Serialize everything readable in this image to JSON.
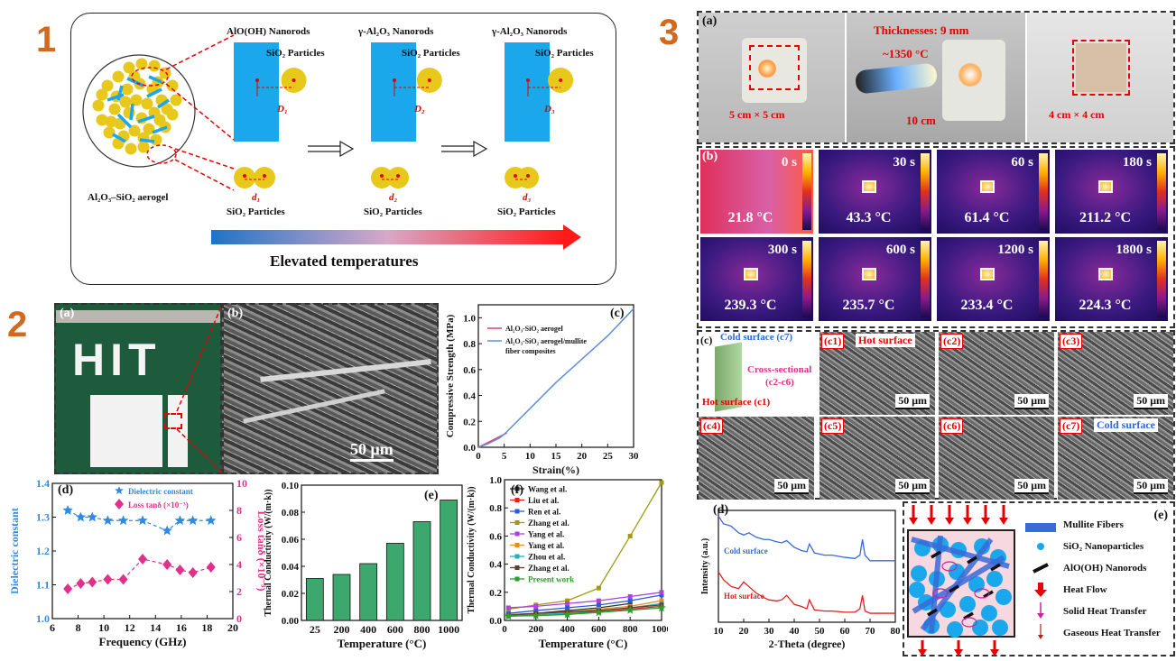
{
  "section_numbers": [
    "1",
    "2",
    "3"
  ],
  "fig1": {
    "aerogel_label": "Al₂O₃–SiO₂ aerogel",
    "stages": [
      {
        "rod_label": "AlO(OH) Nanorods",
        "particle_label": "SiO₂ Particles",
        "D": "D₁",
        "d": "d₁",
        "pair_label": "SiO₂ Particles"
      },
      {
        "rod_label": "γ-Al₂O₃ Nanorods",
        "particle_label": "SiO₂ Particles",
        "D": "D₂",
        "d": "d₂",
        "pair_label": "SiO₂ Particles"
      },
      {
        "rod_label": "γ-Al₂O₃ Nanorods",
        "particle_label": "SiO₂ Particles",
        "D": "D₃",
        "d": "d₃",
        "pair_label": "SiO₂ Particles"
      }
    ],
    "arrow_caption": "Elevated temperatures",
    "colors": {
      "rod": "#1aa7ec",
      "particle": "#e8c81a",
      "arrow_start": "#1e73c8",
      "arrow_end": "#ff1a1a"
    }
  },
  "fig2": {
    "a": {
      "label": "(a)",
      "letters": "HIT"
    },
    "b": {
      "label": "(b)",
      "scale": "50 μm"
    },
    "c": {
      "label": "(c)",
      "legend": [
        "Al₂O₃-SiO₂ aerogel",
        "Al₂O₃-SiO₂ aerogel/mullite",
        "fiber composites"
      ]
    },
    "d": {
      "label": "(d)",
      "legend": [
        "Dielectric constant",
        "Loss tanδ (×10⁻³)"
      ]
    },
    "e": {
      "label": "(e)"
    },
    "f": {
      "label": "(f)"
    }
  },
  "fig3": {
    "a": {
      "label": "(a)",
      "size1": "5 cm × 5 cm",
      "thickness": "Thicknesses: 9 mm",
      "flame_temp": "~1350 °C",
      "distance": "10 cm",
      "size2": "4 cm × 4 cm"
    },
    "b": {
      "label": "(b)",
      "cells": [
        {
          "time": "0 s",
          "temp": "21.8 °C"
        },
        {
          "time": "30 s",
          "temp": "43.3 °C"
        },
        {
          "time": "60 s",
          "temp": "61.4 °C"
        },
        {
          "time": "180 s",
          "temp": "211.2 °C"
        },
        {
          "time": "300 s",
          "temp": "239.3 °C"
        },
        {
          "time": "600 s",
          "temp": "235.7 °C"
        },
        {
          "time": "1200 s",
          "temp": "233.4 °C"
        },
        {
          "time": "1800 s",
          "temp": "224.3 °C"
        }
      ]
    },
    "c": {
      "label": "(c)",
      "cold": "Cold surface (c7)",
      "cross": "Cross-sectional",
      "cross2": "(c2-c6)",
      "hot": "Hot surface (c1)",
      "sem": [
        {
          "label": "(c1)",
          "extra": "Hot surface",
          "scale": "50 μm"
        },
        {
          "label": "(c2)",
          "extra": "",
          "scale": "50 μm"
        },
        {
          "label": "(c3)",
          "extra": "",
          "scale": "50 μm"
        },
        {
          "label": "(c4)",
          "extra": "",
          "scale": "50 μm"
        },
        {
          "label": "(c5)",
          "extra": "",
          "scale": "50 μm"
        },
        {
          "label": "(c6)",
          "extra": "",
          "scale": "50 μm"
        },
        {
          "label": "(c7)",
          "extra": "Cold surface",
          "scale": "50 μm"
        }
      ]
    },
    "d": {
      "label": "(d)"
    },
    "e": {
      "label": "(e)",
      "legend": [
        "Mullite Fibers",
        "SiO₂ Nanoparticles",
        "AlO(OH) Nanorods",
        "Heat Flow",
        "Solid Heat Transfer",
        "Gaseous Heat Transfer"
      ]
    }
  },
  "chart_data": [
    {
      "id": "2c",
      "type": "line",
      "xlabel": "Strain(%)",
      "ylabel": "Compressive Strength (MPa)",
      "xlim": [
        0,
        30
      ],
      "ylim": [
        0,
        1.1
      ],
      "xticks": [
        0,
        5,
        10,
        15,
        20,
        25,
        30
      ],
      "yticks": [
        0.0,
        0.2,
        0.4,
        0.6,
        0.8,
        1.0
      ],
      "series": [
        {
          "name": "Al₂O₃-SiO₂ aerogel",
          "color": "#e0407a",
          "x": [
            0,
            1,
            2,
            3,
            4,
            5,
            5.5
          ],
          "y": [
            0,
            0.02,
            0.04,
            0.06,
            0.08,
            0.1,
            0.11
          ]
        },
        {
          "name": "Al₂O₃-SiO₂ aerogel/mullite fiber composites",
          "color": "#5a8ee0",
          "x": [
            0,
            2,
            4,
            5,
            6,
            10,
            15,
            20,
            25,
            30
          ],
          "y": [
            0,
            0.03,
            0.07,
            0.1,
            0.14,
            0.3,
            0.5,
            0.68,
            0.86,
            1.07
          ]
        }
      ]
    },
    {
      "id": "2d",
      "type": "line",
      "xlabel": "Frequency (GHz)",
      "ylabel": "Dielectric constant",
      "ylabel_right": "Loss tanδ (×10⁻³)",
      "xlim": [
        6,
        20
      ],
      "ylim": [
        1.0,
        1.4
      ],
      "ylim_right": [
        0,
        10
      ],
      "xticks": [
        6,
        8,
        10,
        12,
        14,
        16,
        18,
        20
      ],
      "yticks": [
        1.0,
        1.1,
        1.2,
        1.3,
        1.4
      ],
      "yticks_right": [
        0,
        2,
        4,
        6,
        8,
        10
      ],
      "series": [
        {
          "name": "Dielectric constant",
          "color": "#2e8ae6",
          "marker": "star",
          "x": [
            7.2,
            8.2,
            9.1,
            10.3,
            11.5,
            13.0,
            14.9,
            15.9,
            16.9,
            18.3
          ],
          "y": [
            1.32,
            1.3,
            1.3,
            1.29,
            1.29,
            1.29,
            1.26,
            1.29,
            1.29,
            1.29
          ]
        },
        {
          "name": "Loss tanδ (×10⁻³)",
          "color": "#e0308a",
          "marker": "diamond",
          "axis": "right",
          "x": [
            7.2,
            8.2,
            9.1,
            10.3,
            11.5,
            13.0,
            14.9,
            15.9,
            16.9,
            18.3
          ],
          "y": [
            2.2,
            2.6,
            2.7,
            2.9,
            2.9,
            4.4,
            4.0,
            3.6,
            3.4,
            3.8
          ]
        }
      ]
    },
    {
      "id": "2e",
      "type": "bar",
      "xlabel": "Temperature (°C)",
      "ylabel": "Thermal Conductivity (W/(m·k))",
      "categories": [
        "25",
        "200",
        "400",
        "600",
        "800",
        "1000"
      ],
      "values": [
        0.031,
        0.034,
        0.042,
        0.057,
        0.073,
        0.089
      ],
      "ylim": [
        0,
        0.1
      ],
      "yticks": [
        0.0,
        0.02,
        0.04,
        0.06,
        0.08,
        0.1
      ],
      "color": "#3ca86e"
    },
    {
      "id": "2f",
      "type": "line",
      "xlabel": "Temperature (°C)",
      "ylabel": "Thermal Conductivity (W/(m·k))",
      "xlim": [
        0,
        1000
      ],
      "ylim": [
        0,
        1.0
      ],
      "xticks": [
        0,
        200,
        400,
        600,
        800,
        1000
      ],
      "yticks": [
        0.0,
        0.2,
        0.4,
        0.6,
        0.8,
        1.0
      ],
      "series": [
        {
          "name": "Wang et al.",
          "color": "#333333",
          "x": [
            25,
            200,
            400,
            600,
            800
          ],
          "y": [
            0.03,
            0.05,
            0.07,
            0.09,
            0.12
          ]
        },
        {
          "name": "Liu et al.",
          "color": "#e02020",
          "x": [
            25,
            200,
            400,
            600,
            800,
            1000
          ],
          "y": [
            0.03,
            0.04,
            0.05,
            0.06,
            0.08,
            0.1
          ]
        },
        {
          "name": "Ren et al.",
          "color": "#2a5ae0",
          "x": [
            25,
            200,
            400,
            600,
            800,
            1000
          ],
          "y": [
            0.05,
            0.07,
            0.09,
            0.11,
            0.14,
            0.18
          ]
        },
        {
          "name": "Zhang et al.",
          "color": "#a09a10",
          "x": [
            25,
            200,
            400,
            600,
            800,
            1000
          ],
          "y": [
            0.08,
            0.11,
            0.14,
            0.23,
            0.6,
            0.98
          ]
        },
        {
          "name": "Yang et al.",
          "color": "#b040e0",
          "x": [
            25,
            200,
            400,
            600,
            800,
            1000
          ],
          "y": [
            0.09,
            0.1,
            0.12,
            0.14,
            0.17,
            0.2
          ]
        },
        {
          "name": "Yang et al.",
          "color": "#e09020",
          "x": [
            25,
            200,
            400,
            600,
            800,
            1000
          ],
          "y": [
            0.04,
            0.05,
            0.06,
            0.08,
            0.1,
            0.14
          ]
        },
        {
          "name": "Zhou et al.",
          "color": "#20b0c0",
          "x": [
            25,
            200,
            400,
            600,
            800,
            1000
          ],
          "y": [
            0.03,
            0.04,
            0.05,
            0.07,
            0.09,
            0.12
          ]
        },
        {
          "name": "Zhang et al.",
          "color": "#6a3a2a",
          "x": [
            25,
            200,
            400,
            600,
            800,
            1000
          ],
          "y": [
            0.04,
            0.05,
            0.06,
            0.07,
            0.09,
            0.11
          ]
        },
        {
          "name": "Present work",
          "color": "#2aa02a",
          "marker": "star",
          "x": [
            25,
            200,
            400,
            600,
            800,
            1000
          ],
          "y": [
            0.031,
            0.034,
            0.042,
            0.057,
            0.073,
            0.089
          ]
        }
      ]
    },
    {
      "id": "3d",
      "type": "line",
      "xlabel": "2-Theta (degree)",
      "ylabel": "Intensity (a.u.)",
      "xlim": [
        10,
        80
      ],
      "xticks": [
        10,
        20,
        30,
        40,
        50,
        60,
        70,
        80
      ],
      "series": [
        {
          "name": "Cold surface",
          "color": "#3a6ad8",
          "x": [
            10,
            12,
            15,
            18,
            20,
            22,
            25,
            28,
            30,
            33,
            35,
            37,
            40,
            43,
            45,
            46,
            48,
            52,
            55,
            60,
            64,
            66,
            67,
            68,
            70,
            75,
            80
          ],
          "y": [
            0.95,
            0.88,
            0.86,
            0.8,
            0.78,
            0.8,
            0.76,
            0.74,
            0.74,
            0.72,
            0.71,
            0.73,
            0.67,
            0.64,
            0.63,
            0.7,
            0.62,
            0.6,
            0.6,
            0.58,
            0.57,
            0.6,
            0.74,
            0.6,
            0.55,
            0.55,
            0.55
          ]
        },
        {
          "name": "Hot surface",
          "color": "#e02020",
          "x": [
            10,
            12,
            15,
            18,
            20,
            22,
            25,
            28,
            30,
            33,
            35,
            37,
            40,
            43,
            45,
            46,
            48,
            52,
            55,
            60,
            64,
            66,
            67,
            68,
            70,
            75,
            80
          ],
          "y": [
            0.45,
            0.38,
            0.32,
            0.3,
            0.36,
            0.32,
            0.26,
            0.22,
            0.2,
            0.19,
            0.2,
            0.24,
            0.16,
            0.14,
            0.12,
            0.2,
            0.11,
            0.1,
            0.1,
            0.09,
            0.09,
            0.12,
            0.24,
            0.1,
            0.08,
            0.08,
            0.08
          ]
        }
      ]
    }
  ]
}
